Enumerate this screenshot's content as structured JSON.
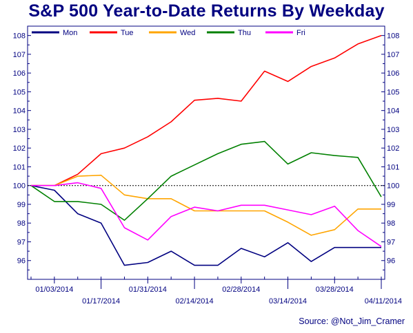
{
  "source": "Source: @Not_Jim_Cramer",
  "chart_data": {
    "type": "line",
    "title": "S&P 500 Year-to-Date Returns By Weekday",
    "xlabel": "",
    "ylabel": "",
    "ylim": [
      95,
      108.5
    ],
    "y_ticks": [
      96,
      97,
      98,
      99,
      100,
      101,
      102,
      103,
      104,
      105,
      106,
      107,
      108
    ],
    "reference_line": {
      "y": 100,
      "style": "dotted",
      "color": "#000000"
    },
    "grid": false,
    "legend_position": "top",
    "x_tick_labels": [
      {
        "label": "01/03/2014",
        "row": "upper",
        "index": 1
      },
      {
        "label": "01/17/2014",
        "row": "lower",
        "index": 3
      },
      {
        "label": "01/31/2014",
        "row": "upper",
        "index": 5
      },
      {
        "label": "02/14/2014",
        "row": "lower",
        "index": 7
      },
      {
        "label": "02/28/2014",
        "row": "upper",
        "index": 9
      },
      {
        "label": "03/14/2014",
        "row": "lower",
        "index": 11
      },
      {
        "label": "03/28/2014",
        "row": "upper",
        "index": 13
      },
      {
        "label": "04/11/2014",
        "row": "lower",
        "index": 15
      }
    ],
    "x_points": 16,
    "series": [
      {
        "name": "Mon",
        "color": "#000080",
        "values": [
          100,
          99.75,
          98.5,
          98,
          95.75,
          95.9,
          96.5,
          95.75,
          95.75,
          96.65,
          96.2,
          96.95,
          95.95,
          96.7,
          96.7,
          96.7
        ]
      },
      {
        "name": "Tue",
        "color": "#ff0000",
        "values": [
          100,
          100,
          100.6,
          101.7,
          102,
          102.6,
          103.4,
          104.55,
          104.65,
          104.5,
          106.1,
          105.55,
          106.35,
          106.8,
          107.55,
          108
        ]
      },
      {
        "name": "Wed",
        "color": "#ffa500",
        "values": [
          100,
          100,
          100.5,
          100.55,
          99.5,
          99.3,
          99.3,
          98.65,
          98.65,
          98.65,
          98.65,
          98.05,
          97.35,
          97.65,
          98.75,
          98.75
        ]
      },
      {
        "name": "Thu",
        "color": "#008000",
        "values": [
          100,
          99.15,
          99.15,
          99,
          98.15,
          99.3,
          100.5,
          101.1,
          101.7,
          102.2,
          102.35,
          101.15,
          101.75,
          101.6,
          101.5,
          99.4
        ]
      },
      {
        "name": "Fri",
        "color": "#ff00ff",
        "values": [
          100,
          100,
          100.15,
          99.85,
          97.75,
          97.1,
          98.35,
          98.85,
          98.65,
          98.95,
          98.95,
          98.7,
          98.45,
          98.9,
          97.6,
          96.75
        ]
      }
    ]
  }
}
